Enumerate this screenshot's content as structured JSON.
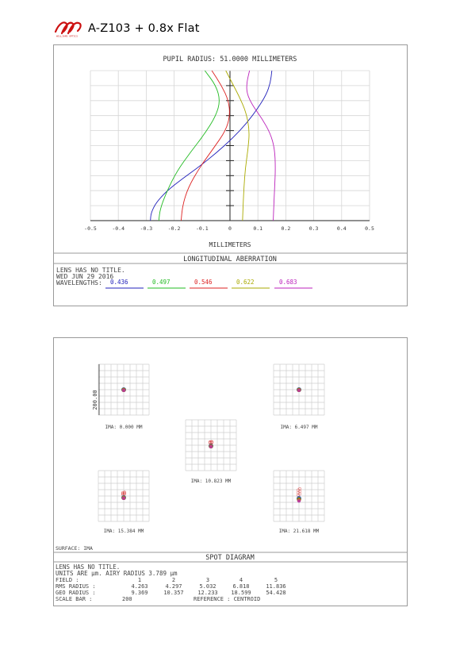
{
  "header": {
    "logo_text": "WILLIAMS OPTICS",
    "title": "A-Z103 + 0.8x Flat"
  },
  "longitudinal": {
    "plot_title": "PUPIL RADIUS: 51.0000 MILLIMETERS",
    "xlabel": "MILLIMETERS",
    "section_title": "LONGITUDINAL ABERRATION",
    "lens_line": "LENS HAS NO TITLE.",
    "date_line": "WED JUN 29 2016",
    "wavelengths_label": "WAVELENGTHS:",
    "wavelengths": [
      {
        "label": "0.436",
        "color": "#2222bb"
      },
      {
        "label": "0.497",
        "color": "#22bb22"
      },
      {
        "label": "0.546",
        "color": "#dd2222"
      },
      {
        "label": "0.622",
        "color": "#aaaa00"
      },
      {
        "label": "0.683",
        "color": "#bb22bb"
      }
    ],
    "tick_labels": [
      "-0.5",
      "-0.4",
      "-0.3",
      "-0.2",
      "-0.1",
      "0",
      "0.1",
      "0.2",
      "0.3",
      "0.4",
      "0.5"
    ]
  },
  "chart_data": {
    "type": "line",
    "title": "PUPIL RADIUS: 51.0000 MILLIMETERS",
    "xlabel": "MILLIMETERS",
    "ylabel": "",
    "xlim": [
      -0.5,
      0.5
    ],
    "ylim": [
      0,
      1
    ],
    "grid": true,
    "legend": "bottom",
    "series": [
      {
        "name": "0.436",
        "color": "#2222bb",
        "points": [
          [
            -0.285,
            0
          ],
          [
            -0.283,
            0.05
          ],
          [
            -0.265,
            0.12
          ],
          [
            -0.225,
            0.2
          ],
          [
            -0.17,
            0.28
          ],
          [
            -0.11,
            0.36
          ],
          [
            -0.05,
            0.45
          ],
          [
            0.01,
            0.55
          ],
          [
            0.06,
            0.65
          ],
          [
            0.1,
            0.75
          ],
          [
            0.13,
            0.84
          ],
          [
            0.145,
            0.92
          ],
          [
            0.15,
            1.0
          ]
        ]
      },
      {
        "name": "0.497",
        "color": "#22bb22",
        "points": [
          [
            -0.255,
            0
          ],
          [
            -0.25,
            0.08
          ],
          [
            -0.225,
            0.2
          ],
          [
            -0.19,
            0.33
          ],
          [
            -0.14,
            0.46
          ],
          [
            -0.09,
            0.58
          ],
          [
            -0.05,
            0.7
          ],
          [
            -0.035,
            0.8
          ],
          [
            -0.05,
            0.9
          ],
          [
            -0.09,
            1.0
          ]
        ]
      },
      {
        "name": "0.546",
        "color": "#dd2222",
        "points": [
          [
            -0.175,
            0
          ],
          [
            -0.17,
            0.1
          ],
          [
            -0.15,
            0.22
          ],
          [
            -0.11,
            0.35
          ],
          [
            -0.06,
            0.48
          ],
          [
            -0.015,
            0.6
          ],
          [
            0.0,
            0.7
          ],
          [
            -0.005,
            0.8
          ],
          [
            -0.03,
            0.9
          ],
          [
            -0.065,
            1.0
          ]
        ]
      },
      {
        "name": "0.622",
        "color": "#aaaa00",
        "points": [
          [
            0.045,
            0
          ],
          [
            0.047,
            0.1
          ],
          [
            0.05,
            0.22
          ],
          [
            0.055,
            0.35
          ],
          [
            0.065,
            0.48
          ],
          [
            0.07,
            0.6
          ],
          [
            0.058,
            0.72
          ],
          [
            0.035,
            0.82
          ],
          [
            0.01,
            0.91
          ],
          [
            -0.015,
            1.0
          ]
        ]
      },
      {
        "name": "0.683",
        "color": "#bb22bb",
        "points": [
          [
            0.155,
            0
          ],
          [
            0.157,
            0.1
          ],
          [
            0.16,
            0.22
          ],
          [
            0.163,
            0.35
          ],
          [
            0.16,
            0.48
          ],
          [
            0.145,
            0.58
          ],
          [
            0.115,
            0.68
          ],
          [
            0.08,
            0.77
          ],
          [
            0.06,
            0.85
          ],
          [
            0.06,
            0.92
          ],
          [
            0.07,
            1.0
          ]
        ]
      }
    ]
  },
  "spot": {
    "scale_label": "200.00",
    "fields": [
      {
        "img": "IMA: 0.000 MM"
      },
      {
        "img": "IMA: 6.497 MM"
      },
      {
        "img": "IMA: 10.823 MM"
      },
      {
        "img": "IMA: 15.384 MM"
      },
      {
        "img": "IMA: 21.618 MM"
      }
    ],
    "surface": "SURFACE: IMA",
    "section_title": "SPOT DIAGRAM",
    "lens_line": "LENS HAS NO TITLE.",
    "units_line": "UNITS ARE µm.  AIRY RADIUS   3.789 µm",
    "field_label": "FIELD      :",
    "field_numbers": [
      "1",
      "2",
      "3",
      "4",
      "5"
    ],
    "rms_label": "RMS RADIUS :",
    "rms_values": [
      "4.263",
      "4.297",
      "5.032",
      "6.818",
      "11.836"
    ],
    "geo_label": "GEO RADIUS :",
    "geo_values": [
      "9.369",
      "10.357",
      "12.233",
      "18.599",
      "54.428"
    ],
    "scale_bar_label": "SCALE BAR  :",
    "scale_bar_value": "200",
    "reference": "REFERENCE  : CENTROID"
  }
}
